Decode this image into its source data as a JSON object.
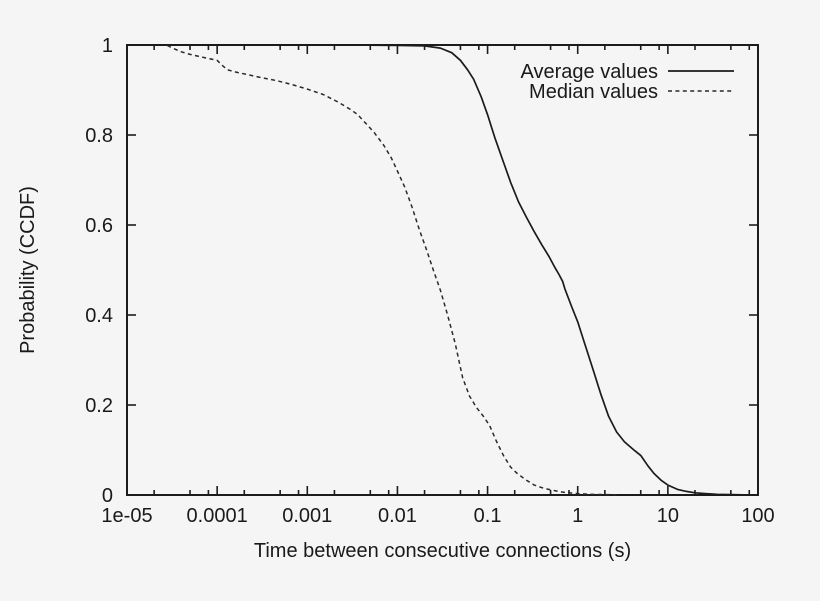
{
  "chart_data": {
    "type": "line",
    "title": "",
    "xlabel": "Time between consecutive connections (s)",
    "ylabel": "Probability (CCDF)",
    "x_scale": "log",
    "xlim": [
      1e-05,
      100
    ],
    "ylim": [
      0,
      1
    ],
    "grid": false,
    "x_ticks": [
      {
        "v": 1e-05,
        "label": "1e-05"
      },
      {
        "v": 0.0001,
        "label": "0.0001"
      },
      {
        "v": 0.001,
        "label": "0.001"
      },
      {
        "v": 0.01,
        "label": "0.01"
      },
      {
        "v": 0.1,
        "label": "0.1"
      },
      {
        "v": 1,
        "label": "1"
      },
      {
        "v": 10,
        "label": "10"
      },
      {
        "v": 100,
        "label": "100"
      }
    ],
    "x_minor_tick_multiples": [
      2,
      5,
      8
    ],
    "y_ticks": [
      {
        "v": 0,
        "label": "0"
      },
      {
        "v": 0.2,
        "label": "0.2"
      },
      {
        "v": 0.4,
        "label": "0.4"
      },
      {
        "v": 0.6,
        "label": "0.6"
      },
      {
        "v": 0.8,
        "label": "0.8"
      },
      {
        "v": 1,
        "label": "1"
      }
    ],
    "legend": {
      "position": "top-right-inside",
      "entries": [
        {
          "name": "Average values",
          "style": "solid"
        },
        {
          "name": "Median values",
          "style": "dashed"
        }
      ]
    },
    "series": [
      {
        "name": "Average values",
        "style": "solid",
        "points": [
          [
            1e-05,
            0.9995
          ],
          [
            0.005,
            0.9995
          ],
          [
            0.01,
            0.999
          ],
          [
            0.02,
            0.998
          ],
          [
            0.03,
            0.993
          ],
          [
            0.04,
            0.983
          ],
          [
            0.05,
            0.966
          ],
          [
            0.06,
            0.945
          ],
          [
            0.07,
            0.924
          ],
          [
            0.085,
            0.885
          ],
          [
            0.1,
            0.845
          ],
          [
            0.12,
            0.795
          ],
          [
            0.15,
            0.74
          ],
          [
            0.18,
            0.695
          ],
          [
            0.22,
            0.652
          ],
          [
            0.27,
            0.617
          ],
          [
            0.33,
            0.585
          ],
          [
            0.4,
            0.556
          ],
          [
            0.48,
            0.53
          ],
          [
            0.55,
            0.508
          ],
          [
            0.62,
            0.49
          ],
          [
            0.68,
            0.475
          ],
          [
            0.72,
            0.458
          ],
          [
            0.85,
            0.42
          ],
          [
            1.0,
            0.385
          ],
          [
            1.2,
            0.335
          ],
          [
            1.5,
            0.275
          ],
          [
            1.8,
            0.225
          ],
          [
            2.2,
            0.175
          ],
          [
            2.7,
            0.14
          ],
          [
            3.3,
            0.118
          ],
          [
            4.2,
            0.1
          ],
          [
            5.0,
            0.088
          ],
          [
            6.0,
            0.065
          ],
          [
            7.0,
            0.048
          ],
          [
            8.5,
            0.032
          ],
          [
            10,
            0.022
          ],
          [
            13,
            0.012
          ],
          [
            16,
            0.008
          ],
          [
            20,
            0.005
          ],
          [
            26,
            0.003
          ],
          [
            35,
            0.0015
          ],
          [
            50,
            0.0008
          ],
          [
            70,
            0.0004
          ]
        ]
      },
      {
        "name": "Median values",
        "style": "dashed",
        "points": [
          [
            2.8e-05,
            0.999
          ],
          [
            3.2e-05,
            0.993
          ],
          [
            4e-05,
            0.985
          ],
          [
            5e-05,
            0.979
          ],
          [
            6.5e-05,
            0.974
          ],
          [
            8e-05,
            0.97
          ],
          [
            0.0001,
            0.966
          ],
          [
            0.000115,
            0.954
          ],
          [
            0.00013,
            0.945
          ],
          [
            0.00016,
            0.94
          ],
          [
            0.00022,
            0.934
          ],
          [
            0.0003,
            0.928
          ],
          [
            0.00045,
            0.921
          ],
          [
            0.00065,
            0.913
          ],
          [
            0.001,
            0.902
          ],
          [
            0.0015,
            0.89
          ],
          [
            0.0022,
            0.873
          ],
          [
            0.003,
            0.857
          ],
          [
            0.0036,
            0.846
          ],
          [
            0.0045,
            0.825
          ],
          [
            0.0055,
            0.806
          ],
          [
            0.007,
            0.778
          ],
          [
            0.0085,
            0.75
          ],
          [
            0.01,
            0.72
          ],
          [
            0.012,
            0.685
          ],
          [
            0.0145,
            0.64
          ],
          [
            0.0175,
            0.59
          ],
          [
            0.021,
            0.545
          ],
          [
            0.025,
            0.5
          ],
          [
            0.03,
            0.455
          ],
          [
            0.036,
            0.4
          ],
          [
            0.044,
            0.335
          ],
          [
            0.053,
            0.26
          ],
          [
            0.063,
            0.22
          ],
          [
            0.075,
            0.195
          ],
          [
            0.09,
            0.175
          ],
          [
            0.105,
            0.155
          ],
          [
            0.125,
            0.12
          ],
          [
            0.15,
            0.088
          ],
          [
            0.18,
            0.062
          ],
          [
            0.21,
            0.049
          ],
          [
            0.26,
            0.035
          ],
          [
            0.33,
            0.022
          ],
          [
            0.42,
            0.015
          ],
          [
            0.52,
            0.011
          ],
          [
            0.65,
            0.007
          ],
          [
            0.8,
            0.005
          ],
          [
            1.0,
            0.003
          ],
          [
            1.4,
            0.0015
          ],
          [
            2.0,
            0.0008
          ],
          [
            2.8,
            0.0004
          ]
        ]
      }
    ],
    "colors": {
      "line": "#1b1b1b",
      "text": "#1a1a1a",
      "background": "#f5f5f6"
    }
  }
}
